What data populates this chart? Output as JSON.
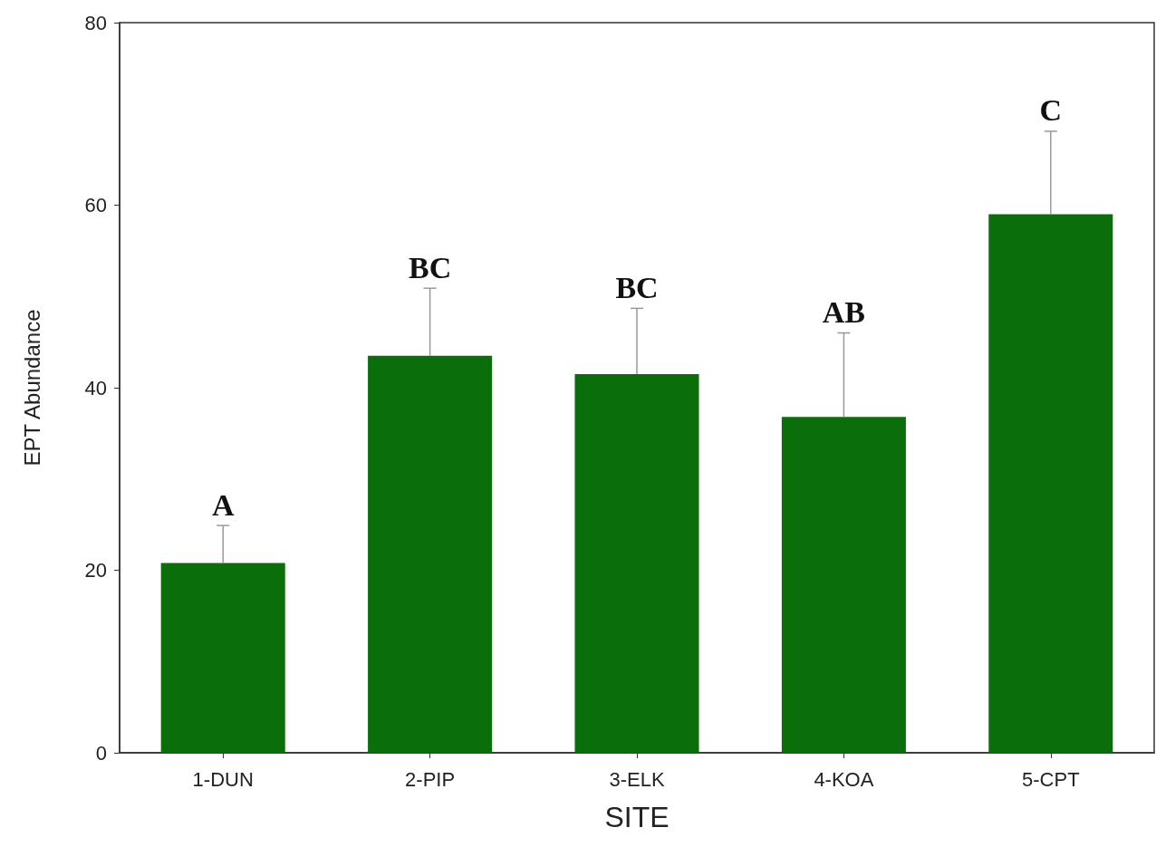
{
  "chart_data": {
    "type": "bar",
    "xlabel": "SITE",
    "ylabel": "EPT Abundance",
    "categories": [
      "1-DUN",
      "2-PIP",
      "3-ELK",
      "4-KOA",
      "5-CPT"
    ],
    "values": [
      20.8,
      43.5,
      41.5,
      36.8,
      59.0
    ],
    "errors": [
      [
        20.8,
        24.9
      ],
      [
        43.5,
        50.9
      ],
      [
        41.5,
        48.7
      ],
      [
        36.8,
        46.0
      ],
      [
        59.0,
        68.1
      ]
    ],
    "color": "#0a6e0a",
    "ylim": [
      0,
      80
    ],
    "yticks": [
      0,
      20,
      40,
      60,
      80
    ],
    "grid": false,
    "annotations": [
      "A",
      "BC",
      "BC",
      "AB",
      "C"
    ]
  }
}
